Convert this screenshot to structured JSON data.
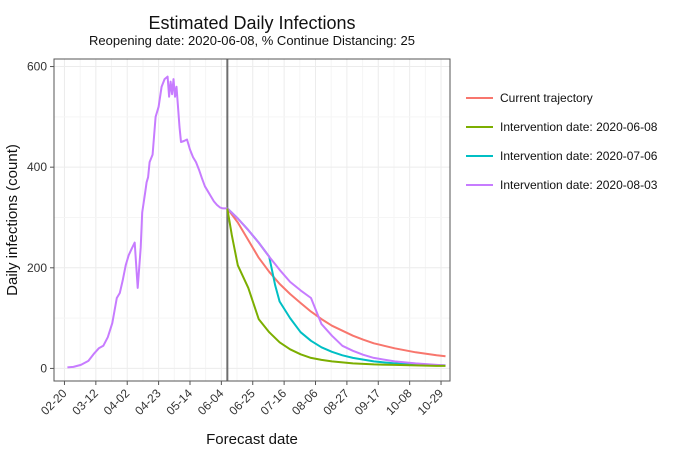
{
  "chart_data": {
    "type": "line",
    "title": "Estimated Daily Infections",
    "subtitle": "Reopening date: 2020-06-08, % Continue Distancing: 25",
    "xlabel": "Forecast date",
    "ylabel": "Daily infections (count)",
    "x_range": [
      "2020-02-13",
      "2020-11-04"
    ],
    "ylim": [
      -25,
      615
    ],
    "y_ticks": [
      0,
      200,
      400,
      600
    ],
    "x_ticks": [
      "02-20",
      "03-12",
      "04-02",
      "04-23",
      "05-14",
      "06-04",
      "06-25",
      "07-16",
      "08-06",
      "08-27",
      "09-17",
      "10-08",
      "10-29"
    ],
    "x_tick_dates": [
      "2020-02-20",
      "2020-03-12",
      "2020-04-02",
      "2020-04-23",
      "2020-05-14",
      "2020-06-04",
      "2020-06-25",
      "2020-07-16",
      "2020-08-06",
      "2020-08-27",
      "2020-09-17",
      "2020-10-08",
      "2020-10-29"
    ],
    "vline_date": "2020-06-08",
    "grid": true,
    "legend_position": "right",
    "history": {
      "x": [
        "2020-02-22",
        "2020-02-26",
        "2020-03-02",
        "2020-03-07",
        "2020-03-11",
        "2020-03-14",
        "2020-03-17",
        "2020-03-20",
        "2020-03-23",
        "2020-03-26",
        "2020-03-28",
        "2020-03-30",
        "2020-04-01",
        "2020-04-03",
        "2020-04-05",
        "2020-04-07",
        "2020-04-09",
        "2020-04-11",
        "2020-04-12",
        "2020-04-13",
        "2020-04-14",
        "2020-04-15",
        "2020-04-16",
        "2020-04-17",
        "2020-04-19",
        "2020-04-21",
        "2020-04-23",
        "2020-04-25",
        "2020-04-27",
        "2020-04-29",
        "2020-04-30",
        "2020-05-01",
        "2020-05-02",
        "2020-05-03",
        "2020-05-04",
        "2020-05-05",
        "2020-05-06",
        "2020-05-07",
        "2020-05-08",
        "2020-05-10",
        "2020-05-12",
        "2020-05-14",
        "2020-05-16",
        "2020-05-18",
        "2020-05-20",
        "2020-05-22",
        "2020-05-24",
        "2020-05-26",
        "2020-05-28",
        "2020-05-30",
        "2020-06-01",
        "2020-06-03",
        "2020-06-05",
        "2020-06-08"
      ],
      "y": [
        2,
        3,
        7,
        15,
        30,
        40,
        45,
        62,
        90,
        140,
        150,
        175,
        205,
        225,
        238,
        250,
        160,
        240,
        310,
        330,
        350,
        370,
        380,
        410,
        425,
        500,
        520,
        560,
        575,
        580,
        540,
        570,
        545,
        575,
        540,
        560,
        520,
        480,
        450,
        452,
        455,
        435,
        420,
        410,
        395,
        378,
        362,
        352,
        342,
        332,
        325,
        320,
        318,
        318
      ]
    },
    "series": [
      {
        "name": "Current trajectory",
        "color": "#F8766D",
        "x": [
          "2020-06-08",
          "2020-06-15",
          "2020-06-22",
          "2020-06-29",
          "2020-07-06",
          "2020-07-13",
          "2020-07-20",
          "2020-07-27",
          "2020-08-03",
          "2020-08-10",
          "2020-08-17",
          "2020-08-24",
          "2020-08-31",
          "2020-09-07",
          "2020-09-14",
          "2020-09-21",
          "2020-09-28",
          "2020-10-05",
          "2020-10-12",
          "2020-10-19",
          "2020-10-26",
          "2020-11-01"
        ],
        "y": [
          318,
          290,
          255,
          220,
          192,
          168,
          148,
          130,
          113,
          98,
          85,
          75,
          65,
          57,
          50,
          45,
          40,
          36,
          32,
          29,
          26,
          24
        ]
      },
      {
        "name": "Intervention date: 2020-06-08",
        "color": "#7CAE00",
        "x": [
          "2020-06-08",
          "2020-06-11",
          "2020-06-15",
          "2020-06-22",
          "2020-06-29",
          "2020-07-06",
          "2020-07-13",
          "2020-07-20",
          "2020-07-27",
          "2020-08-03",
          "2020-08-10",
          "2020-08-17",
          "2020-08-31",
          "2020-09-14",
          "2020-09-28",
          "2020-10-12",
          "2020-10-26",
          "2020-11-01"
        ],
        "y": [
          318,
          265,
          205,
          160,
          98,
          72,
          52,
          38,
          28,
          21,
          17,
          14,
          10,
          8,
          7,
          6,
          5,
          5
        ]
      },
      {
        "name": "Intervention date: 2020-07-06",
        "color": "#00BFC4",
        "x": [
          "2020-06-08",
          "2020-06-15",
          "2020-06-22",
          "2020-06-29",
          "2020-07-06",
          "2020-07-10",
          "2020-07-13",
          "2020-07-20",
          "2020-07-27",
          "2020-08-03",
          "2020-08-10",
          "2020-08-17",
          "2020-08-24",
          "2020-08-31",
          "2020-09-14",
          "2020-09-28",
          "2020-10-12",
          "2020-10-26",
          "2020-11-01"
        ],
        "y": [
          318,
          298,
          275,
          250,
          222,
          165,
          133,
          100,
          72,
          55,
          42,
          33,
          26,
          21,
          14,
          10,
          8,
          6,
          6
        ]
      },
      {
        "name": "Intervention date: 2020-08-03",
        "color": "#C77CFF",
        "x": [
          "2020-06-08",
          "2020-06-15",
          "2020-06-22",
          "2020-06-29",
          "2020-07-06",
          "2020-07-13",
          "2020-07-20",
          "2020-07-27",
          "2020-08-03",
          "2020-08-10",
          "2020-08-17",
          "2020-08-24",
          "2020-08-31",
          "2020-09-07",
          "2020-09-14",
          "2020-09-28",
          "2020-10-12",
          "2020-10-26",
          "2020-11-01"
        ],
        "y": [
          318,
          298,
          275,
          250,
          222,
          196,
          172,
          155,
          140,
          88,
          65,
          45,
          35,
          27,
          21,
          14,
          10,
          7,
          6
        ]
      }
    ]
  }
}
